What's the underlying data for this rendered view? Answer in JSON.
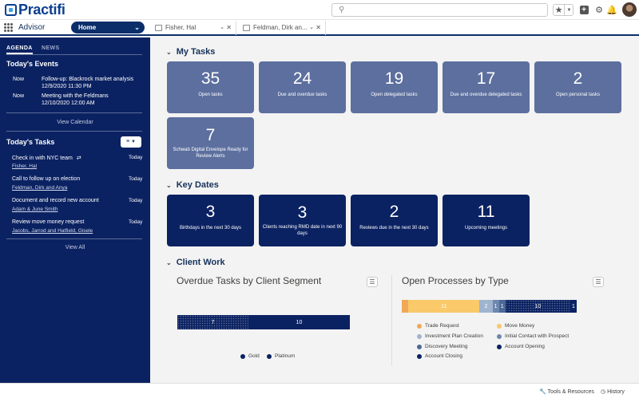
{
  "header": {
    "logo_text": "Practifi",
    "search_placeholder": "",
    "icons": [
      "star-icon",
      "chevron-down-icon",
      "add-icon",
      "gear-icon",
      "bell-icon"
    ]
  },
  "nav": {
    "app_name": "Advisor",
    "home_tab": "Home",
    "tabs": [
      {
        "label": "Fisher, Hal"
      },
      {
        "label": "Feldman, Dirk an..."
      }
    ]
  },
  "sidebar": {
    "tab_agenda": "AGENDA",
    "tab_news": "NEWS",
    "events_heading": "Today's Events",
    "events": [
      {
        "when": "Now",
        "title": "Follow-up: Blackrock market analysis",
        "time": "12/9/2020 11:30 PM"
      },
      {
        "when": "Now",
        "title": "Meeting with the Feldmans",
        "time": "12/10/2020 12:00 AM"
      }
    ],
    "view_calendar": "View Calendar",
    "tasks_heading": "Today's Tasks",
    "tasks": [
      {
        "title": "Check in with NYC team",
        "who": "Fisher, Hal",
        "when": "Today"
      },
      {
        "title": "Call to follow up on election",
        "who": "Feldman, Dirk and Anya",
        "when": "Today"
      },
      {
        "title": "Document and record new account",
        "who": "Adam & June Smith",
        "when": "Today"
      },
      {
        "title": "Review move money request",
        "who": "Jacobs, Jarrod and Hatfield, Gisele",
        "when": "Today"
      }
    ],
    "view_all": "View All"
  },
  "my_tasks": {
    "heading": "My Tasks",
    "cards": [
      {
        "value": "35",
        "label": "Open tasks"
      },
      {
        "value": "24",
        "label": "Due and overdue tasks"
      },
      {
        "value": "19",
        "label": "Open delegated tasks"
      },
      {
        "value": "17",
        "label": "Due and overdue delegated tasks"
      },
      {
        "value": "2",
        "label": "Open personal tasks"
      },
      {
        "value": "7",
        "label": "Schwab Digital Envelope Ready for Review Alerts"
      }
    ]
  },
  "key_dates": {
    "heading": "Key Dates",
    "cards": [
      {
        "value": "3",
        "label": "Birthdays in the next 30 days"
      },
      {
        "value": "3",
        "label": "Clients reaching RMD date in next 90 days"
      },
      {
        "value": "2",
        "label": "Reviews due in the next 30 days"
      },
      {
        "value": "11",
        "label": "Upcoming meetings"
      }
    ]
  },
  "client_work": {
    "heading": "Client Work"
  },
  "chart_data": [
    {
      "type": "bar",
      "orientation": "horizontal-stacked",
      "title": "Overdue Tasks by Client Segment",
      "series": [
        {
          "name": "Gold",
          "value": 7,
          "color": "#0b2262",
          "pattern": "dotted"
        },
        {
          "name": "Platinum",
          "value": 10,
          "color": "#0b2262"
        }
      ],
      "legend": "bottom"
    },
    {
      "type": "bar",
      "orientation": "horizontal-stacked",
      "title": "Open Processes by Type",
      "series": [
        {
          "name": "Trade Request",
          "value": 1,
          "color": "#f0a857",
          "label": ""
        },
        {
          "name": "Move Money",
          "value": 11,
          "color": "#f9c96a",
          "label": "11"
        },
        {
          "name": "Investment Plan Creation",
          "value": 2,
          "color": "#9fb4cf",
          "label": "2"
        },
        {
          "name": "Initial Contact with Prospect",
          "value": 1,
          "color": "#6e87ad",
          "label": "1"
        },
        {
          "name": "Discovery Meeting",
          "value": 1,
          "color": "#4c6a98",
          "label": "1"
        },
        {
          "name": "Account Opening",
          "value": 10,
          "color": "#0b2262",
          "label": "10",
          "pattern": "dotted"
        },
        {
          "name": "Account Closing",
          "value": 1,
          "color": "#0b2262",
          "label": "1"
        }
      ],
      "legend": "bottom"
    }
  ],
  "footer": {
    "tools": "Tools & Resources",
    "history": "History"
  }
}
